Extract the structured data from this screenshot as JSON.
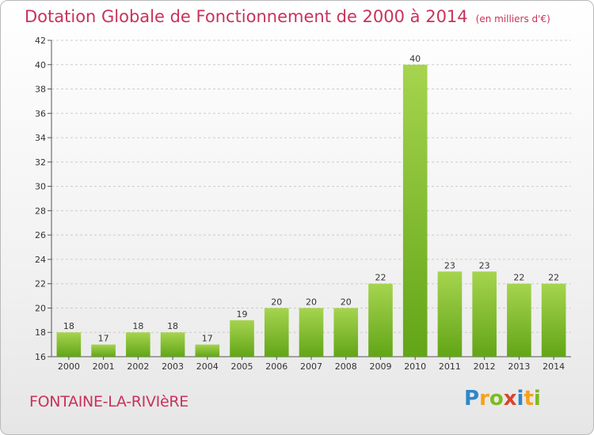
{
  "title": "Dotation Globale de Fonctionnement de 2000 à 2014",
  "unit_note": "(en milliers d'€)",
  "commune": "FONTAINE-LA-RIVIèRE",
  "brand": {
    "letters": [
      "P",
      "r",
      "o",
      "x",
      "i",
      "t",
      "i"
    ],
    "colors": [
      "#2e87c8",
      "#f5a21c",
      "#7cbc1e",
      "#d9442b",
      "#2e87c8",
      "#f5a21c",
      "#7cbc1e"
    ]
  },
  "colors": {
    "title": "#c8325c",
    "bar_top": "#a6d44f",
    "bar_bottom": "#62a517",
    "grid": "#cccccc"
  },
  "chart_data": {
    "type": "bar",
    "title": "Dotation Globale de Fonctionnement de 2000 à 2014",
    "ylabel": "(en milliers d'€)",
    "xlabel": "",
    "categories": [
      "2000",
      "2001",
      "2002",
      "2003",
      "2004",
      "2005",
      "2006",
      "2007",
      "2008",
      "2009",
      "2010",
      "2011",
      "2012",
      "2013",
      "2014"
    ],
    "values": [
      18,
      17,
      18,
      18,
      17,
      19,
      20,
      20,
      20,
      22,
      40,
      23,
      23,
      22,
      22
    ],
    "ylim": [
      16,
      42
    ],
    "yticks": [
      16,
      18,
      20,
      22,
      24,
      26,
      28,
      30,
      32,
      34,
      36,
      38,
      40,
      42
    ],
    "grid": "horizontal dashed",
    "legend": "none"
  }
}
